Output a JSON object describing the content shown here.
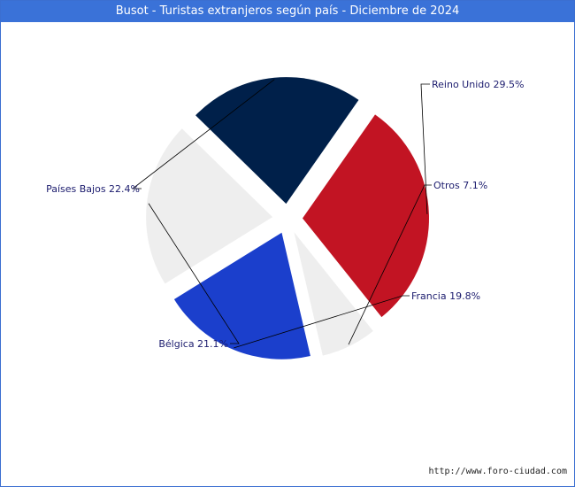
{
  "chart_data": {
    "type": "pie",
    "title": "Busot - Turistas extranjeros según país - Diciembre de 2024",
    "slices": [
      {
        "label": "Reino Unido",
        "value": 29.5,
        "text": "Reino Unido 29.5%",
        "color": "#c21423"
      },
      {
        "label": "Otros",
        "value": 7.1,
        "text": "Otros 7.1%",
        "color": "#eeeeee"
      },
      {
        "label": "Francia",
        "value": 19.8,
        "text": "Francia 19.8%",
        "color": "#1b3fcc"
      },
      {
        "label": "Bélgica",
        "value": 21.1,
        "text": "Bélgica 21.1%",
        "color": "#eeeeee"
      },
      {
        "label": "Países Bajos",
        "value": 22.4,
        "text": "Países Bajos 22.4%",
        "color": "#00204a"
      }
    ]
  },
  "footer": {
    "url": "http://www.foro-ciudad.com"
  }
}
